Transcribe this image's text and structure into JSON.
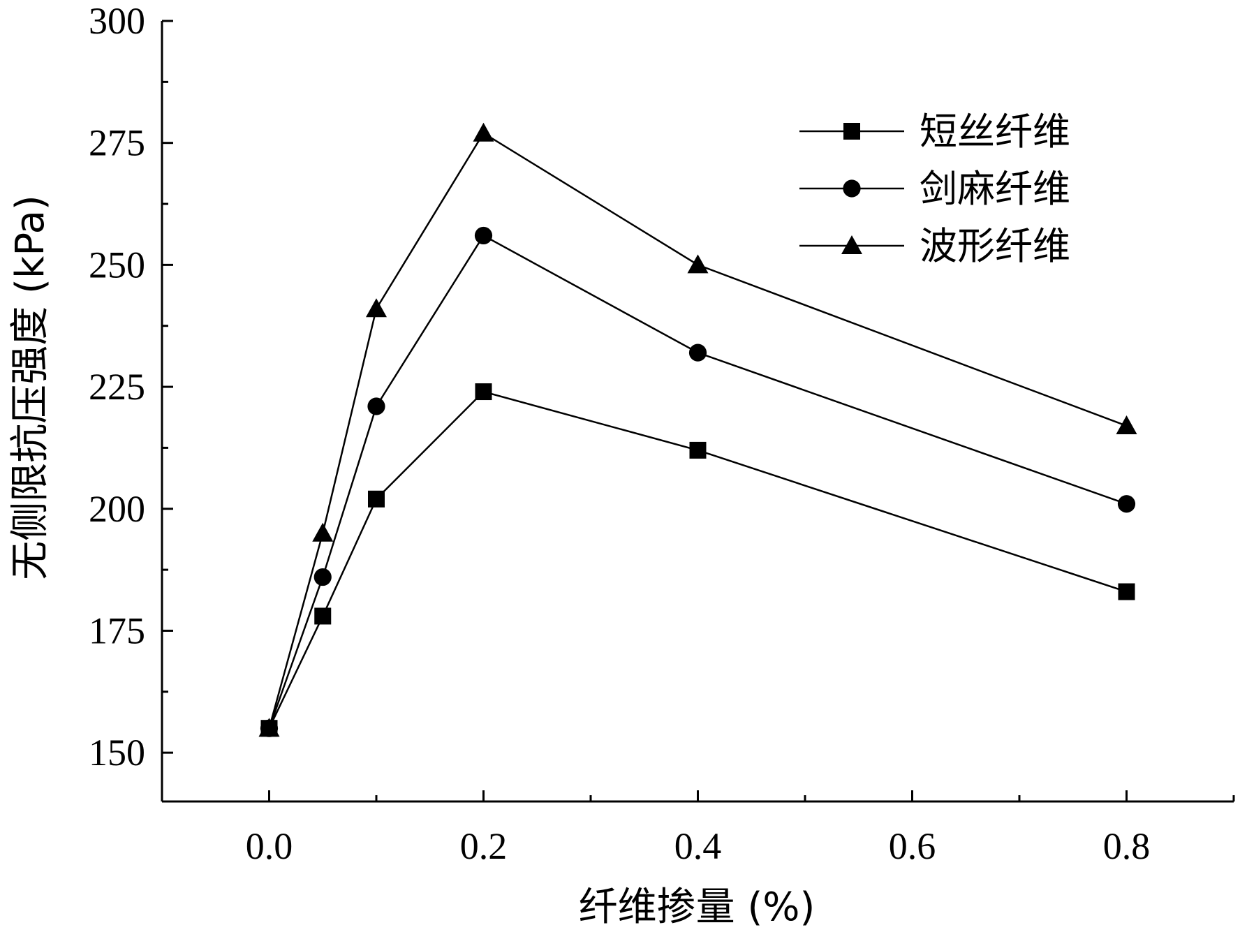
{
  "chart_data": {
    "type": "line",
    "title": "",
    "xlabel": "纤维掺量 (%)",
    "ylabel": "无侧限抗压强度 (kPa)",
    "xlim": [
      -0.1,
      0.9
    ],
    "ylim": [
      140,
      300
    ],
    "xticks": [
      0.0,
      0.2,
      0.4,
      0.6,
      0.8
    ],
    "xtick_labels": [
      "0.0",
      "0.2",
      "0.4",
      "0.6",
      "0.8"
    ],
    "xticks_minor": [
      -0.1,
      0.1,
      0.3,
      0.5,
      0.7,
      0.9
    ],
    "yticks": [
      150,
      175,
      200,
      225,
      250,
      275,
      300
    ],
    "ytick_labels": [
      "150",
      "175",
      "200",
      "225",
      "250",
      "275",
      "300"
    ],
    "yticks_minor": [
      162.5,
      187.5,
      212.5,
      237.5,
      262.5,
      287.5
    ],
    "grid": false,
    "legend_position": "top-right",
    "x": [
      0.0,
      0.05,
      0.1,
      0.2,
      0.4,
      0.8
    ],
    "series": [
      {
        "name": "短丝纤维",
        "marker": "square",
        "values": [
          155,
          178,
          202,
          224,
          212,
          183
        ]
      },
      {
        "name": "剑麻纤维",
        "marker": "circle",
        "values": [
          155,
          186,
          221,
          256,
          232,
          201
        ]
      },
      {
        "name": "波形纤维",
        "marker": "triangle",
        "values": [
          155,
          195,
          241,
          277,
          250,
          217
        ]
      }
    ],
    "colors": {
      "line": "#000000",
      "marker": "#000000"
    }
  }
}
